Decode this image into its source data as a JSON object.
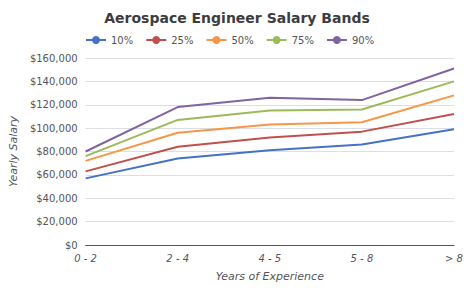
{
  "chart_data": {
    "type": "line",
    "title": "Aerospace Engineer Salary Bands",
    "xlabel": "Years of Experience",
    "ylabel": "Yearly Salary",
    "categories": [
      "0 - 2",
      "2 - 4",
      "4 - 5",
      "5 - 8",
      "> 8"
    ],
    "series": [
      {
        "name": "10%",
        "color": "#4472C4",
        "values": [
          57000,
          74000,
          81000,
          86000,
          99000
        ]
      },
      {
        "name": "25%",
        "color": "#C0504D",
        "values": [
          63000,
          84000,
          92000,
          97000,
          112000
        ]
      },
      {
        "name": "50%",
        "color": "#F79646",
        "values": [
          72000,
          96000,
          103000,
          105000,
          128000
        ]
      },
      {
        "name": "75%",
        "color": "#9BBB59",
        "values": [
          76000,
          107000,
          115000,
          116000,
          140000
        ]
      },
      {
        "name": "90%",
        "color": "#8064A2",
        "values": [
          80000,
          118000,
          126000,
          124000,
          151000
        ]
      }
    ],
    "ylim": [
      0,
      160000
    ],
    "yticks": [
      {
        "value": 0,
        "label": "$0"
      },
      {
        "value": 20000,
        "label": "$20,000"
      },
      {
        "value": 40000,
        "label": "$40,000"
      },
      {
        "value": 60000,
        "label": "$60,000"
      },
      {
        "value": 80000,
        "label": "$80,000"
      },
      {
        "value": 100000,
        "label": "$100,000"
      },
      {
        "value": 120000,
        "label": "$120,000"
      },
      {
        "value": 140000,
        "label": "$140,000"
      },
      {
        "value": 160000,
        "label": "$160,000"
      }
    ],
    "grid": true,
    "legend": "upper left"
  }
}
